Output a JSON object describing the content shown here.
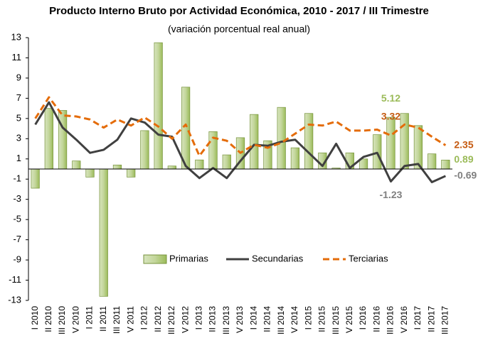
{
  "chart_data": {
    "type": "bar-line",
    "title": "Producto Interno Bruto por Actividad Económica, 2010 - 2017 / III Trimestre",
    "subtitle": "(variación porcentual real anual)",
    "categories": [
      "I 2010",
      "II 2010",
      "III 2010",
      "V 2010",
      "I 2011",
      "II 2011",
      "III 2011",
      "V 2011",
      "I 2012",
      "II 2012",
      "III 2012",
      "V 2012",
      "I 2013",
      "II 2013",
      "III 2013",
      "V 2013",
      "I 2014",
      "II 2014",
      "III 2014",
      "V 2014",
      "I 2015",
      "II 2015",
      "III 2015",
      "V 2015",
      "I 2016",
      "II 2016",
      "III 2016",
      "V 2016",
      "I 2017",
      "II 2017",
      "III 2017"
    ],
    "ylim": [
      -13,
      13
    ],
    "yticks": [
      -13,
      -11,
      -9,
      -7,
      -5,
      -3,
      -1,
      1,
      3,
      5,
      7,
      9,
      11,
      13
    ],
    "legend": "bottom",
    "series": [
      {
        "name": "Primarias",
        "type": "bar",
        "color": "#9bbb59",
        "label_color": "#9bbb59",
        "values": [
          -1.9,
          6.0,
          5.8,
          0.8,
          -0.8,
          -12.6,
          0.4,
          -0.8,
          3.8,
          12.5,
          0.3,
          8.1,
          0.9,
          3.7,
          1.4,
          3.1,
          5.4,
          2.8,
          6.1,
          2.1,
          5.5,
          1.6,
          0.1,
          1.6,
          1.0,
          3.4,
          5.12,
          5.5,
          4.3,
          1.5,
          0.89
        ],
        "value_labels": [
          null,
          null,
          null,
          null,
          null,
          null,
          null,
          null,
          null,
          null,
          null,
          null,
          null,
          null,
          null,
          null,
          null,
          null,
          null,
          null,
          null,
          null,
          null,
          null,
          null,
          null,
          "5.12",
          null,
          null,
          null,
          "0.89"
        ]
      },
      {
        "name": "Secundarias",
        "type": "line",
        "color": "#404040",
        "label_color": "#7f7f7f",
        "values": [
          4.4,
          6.6,
          4.1,
          2.9,
          1.6,
          1.9,
          2.9,
          5.0,
          4.6,
          3.4,
          3.2,
          0.3,
          -0.9,
          0.1,
          -0.9,
          0.8,
          2.4,
          2.3,
          2.7,
          2.9,
          1.6,
          0.3,
          2.5,
          0.1,
          1.2,
          1.6,
          -1.23,
          0.3,
          0.5,
          -1.3,
          -0.69
        ],
        "value_labels": [
          null,
          null,
          null,
          null,
          null,
          null,
          null,
          null,
          null,
          null,
          null,
          null,
          null,
          null,
          null,
          null,
          null,
          null,
          null,
          null,
          null,
          null,
          null,
          null,
          null,
          null,
          "-1.23",
          null,
          null,
          null,
          "-0.69"
        ]
      },
      {
        "name": "Terciarias",
        "type": "dashed-line",
        "color": "#e46c0a",
        "label_color": "#c55a11",
        "values": [
          5.0,
          7.1,
          5.3,
          5.2,
          4.9,
          4.1,
          4.9,
          4.3,
          5.1,
          4.2,
          3.0,
          4.4,
          1.3,
          3.1,
          2.8,
          1.6,
          2.4,
          2.1,
          2.6,
          3.5,
          4.4,
          4.3,
          4.7,
          3.8,
          3.8,
          3.9,
          3.32,
          4.4,
          4.1,
          3.2,
          2.35
        ],
        "value_labels": [
          null,
          null,
          null,
          null,
          null,
          null,
          null,
          null,
          null,
          null,
          null,
          null,
          null,
          null,
          null,
          null,
          null,
          null,
          null,
          null,
          null,
          null,
          null,
          null,
          null,
          null,
          "3.32",
          null,
          null,
          null,
          "2.35"
        ]
      }
    ]
  }
}
